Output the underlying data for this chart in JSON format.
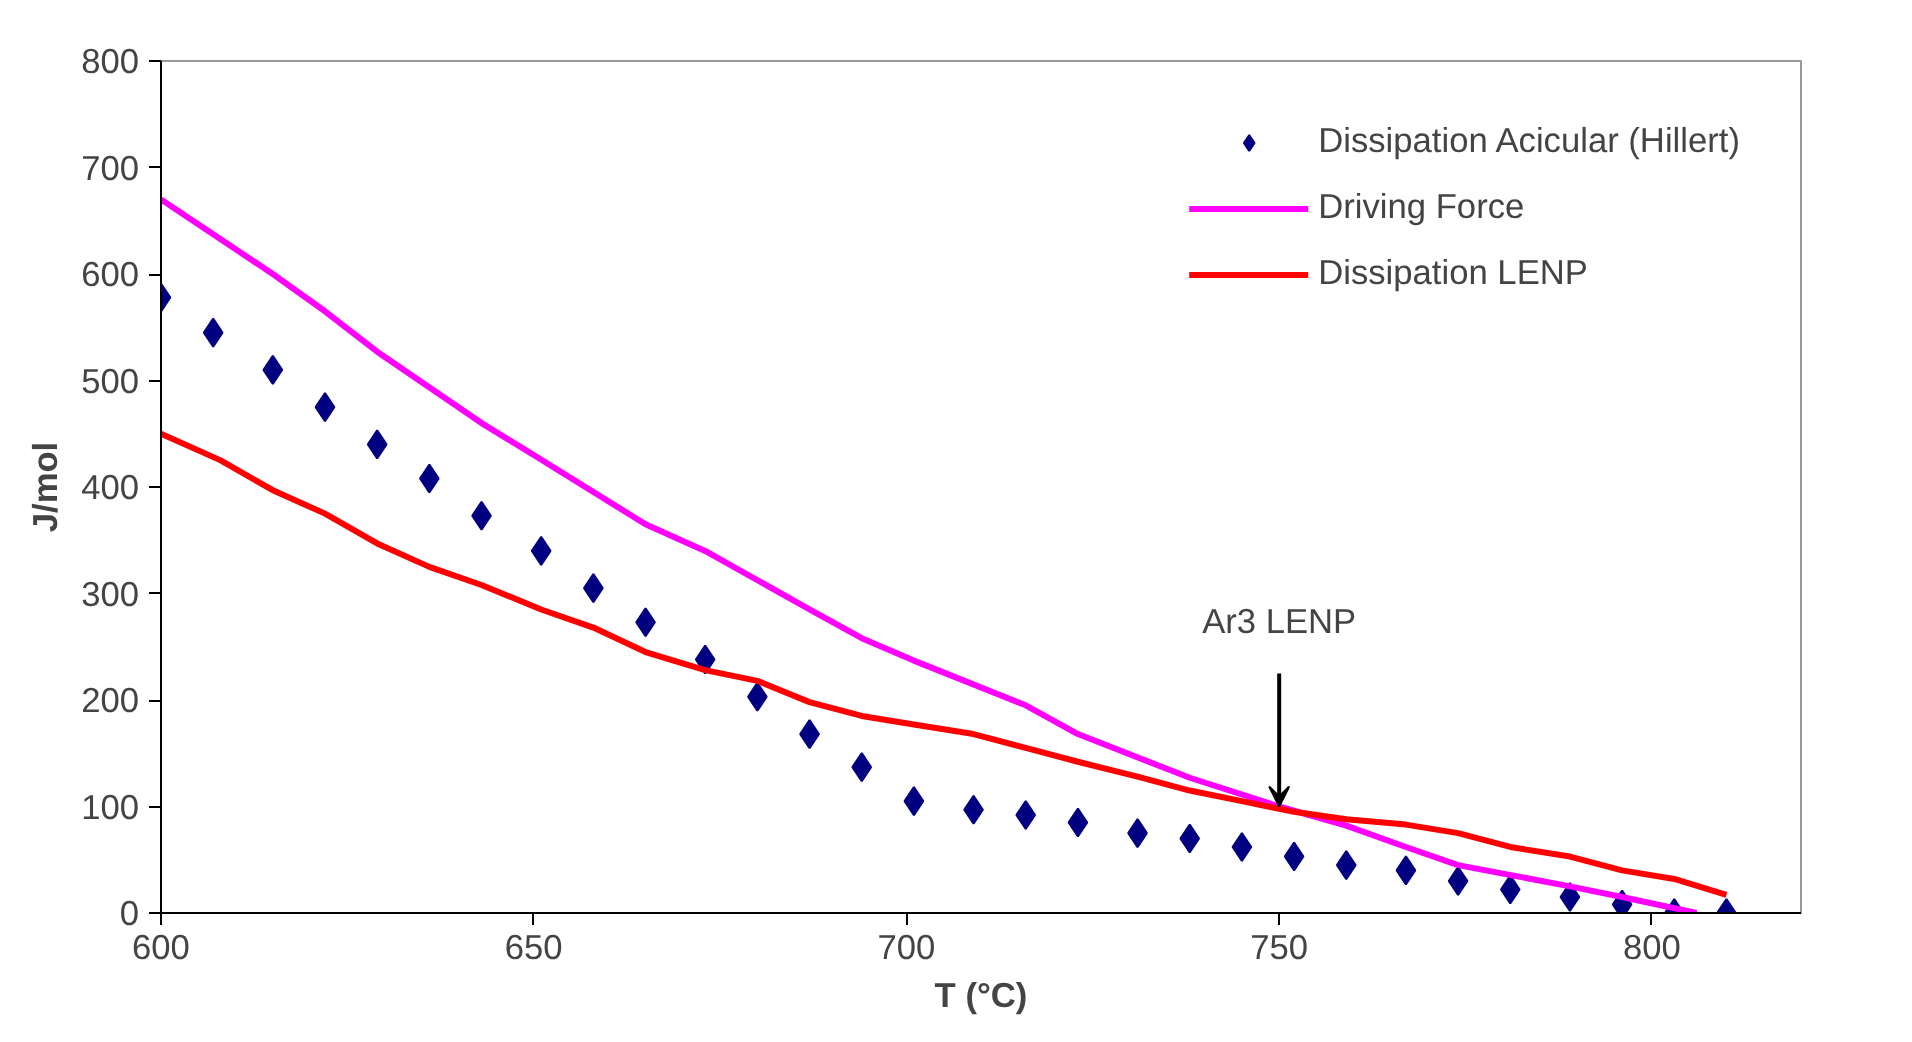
{
  "chart_data": {
    "type": "line",
    "xlabel": "T (°C)",
    "ylabel": "J/mol",
    "xlim": [
      600,
      820
    ],
    "ylim": [
      0,
      800
    ],
    "xticks": [
      600,
      650,
      700,
      750,
      800
    ],
    "yticks": [
      0,
      100,
      200,
      300,
      400,
      500,
      600,
      700,
      800
    ],
    "grid": false,
    "legend": "top right",
    "annotations": [
      {
        "text": "Ar3 LENP",
        "x": 750,
        "y": 100
      }
    ],
    "series": [
      {
        "name": "Dissipation Acicular (Hillert)",
        "type": "scatter",
        "marker": "diamond",
        "color": "#000080",
        "x": [
          600,
          607,
          615,
          622,
          629,
          636,
          643,
          651,
          658,
          665,
          673,
          680,
          687,
          694,
          701,
          709,
          716,
          723,
          731,
          738,
          745,
          752,
          759,
          767,
          774,
          781,
          789,
          796,
          803,
          810
        ],
        "values": [
          578,
          545,
          510,
          475,
          440,
          408,
          373,
          340,
          305,
          273,
          238,
          203,
          168,
          137,
          105,
          97,
          92,
          85,
          75,
          70,
          62,
          53,
          45,
          40,
          30,
          22,
          15,
          8,
          0,
          0
        ]
      },
      {
        "name": "Driving Force",
        "color": "#ff00ff",
        "x": [
          600,
          615,
          622,
          629,
          643,
          650,
          665,
          673,
          687,
          694,
          701,
          716,
          723,
          738,
          750,
          759,
          767,
          774,
          789,
          796,
          806
        ],
        "values": [
          670,
          600,
          565,
          527,
          460,
          430,
          365,
          340,
          285,
          258,
          237,
          195,
          168,
          127,
          100,
          82,
          62,
          45,
          25,
          15,
          0
        ]
      },
      {
        "name": "Dissipation LENP",
        "color": "#ff0000",
        "x": [
          600,
          608,
          615,
          622,
          629,
          636,
          643,
          651,
          658,
          665,
          673,
          680,
          687,
          694,
          701,
          709,
          716,
          723,
          731,
          738,
          745,
          752,
          759,
          767,
          774,
          781,
          789,
          796,
          803,
          810
        ],
        "values": [
          450,
          425,
          397,
          375,
          347,
          325,
          308,
          285,
          268,
          245,
          228,
          218,
          198,
          185,
          177,
          168,
          155,
          142,
          128,
          115,
          105,
          95,
          88,
          83,
          75,
          62,
          53,
          40,
          32,
          17
        ]
      }
    ]
  }
}
